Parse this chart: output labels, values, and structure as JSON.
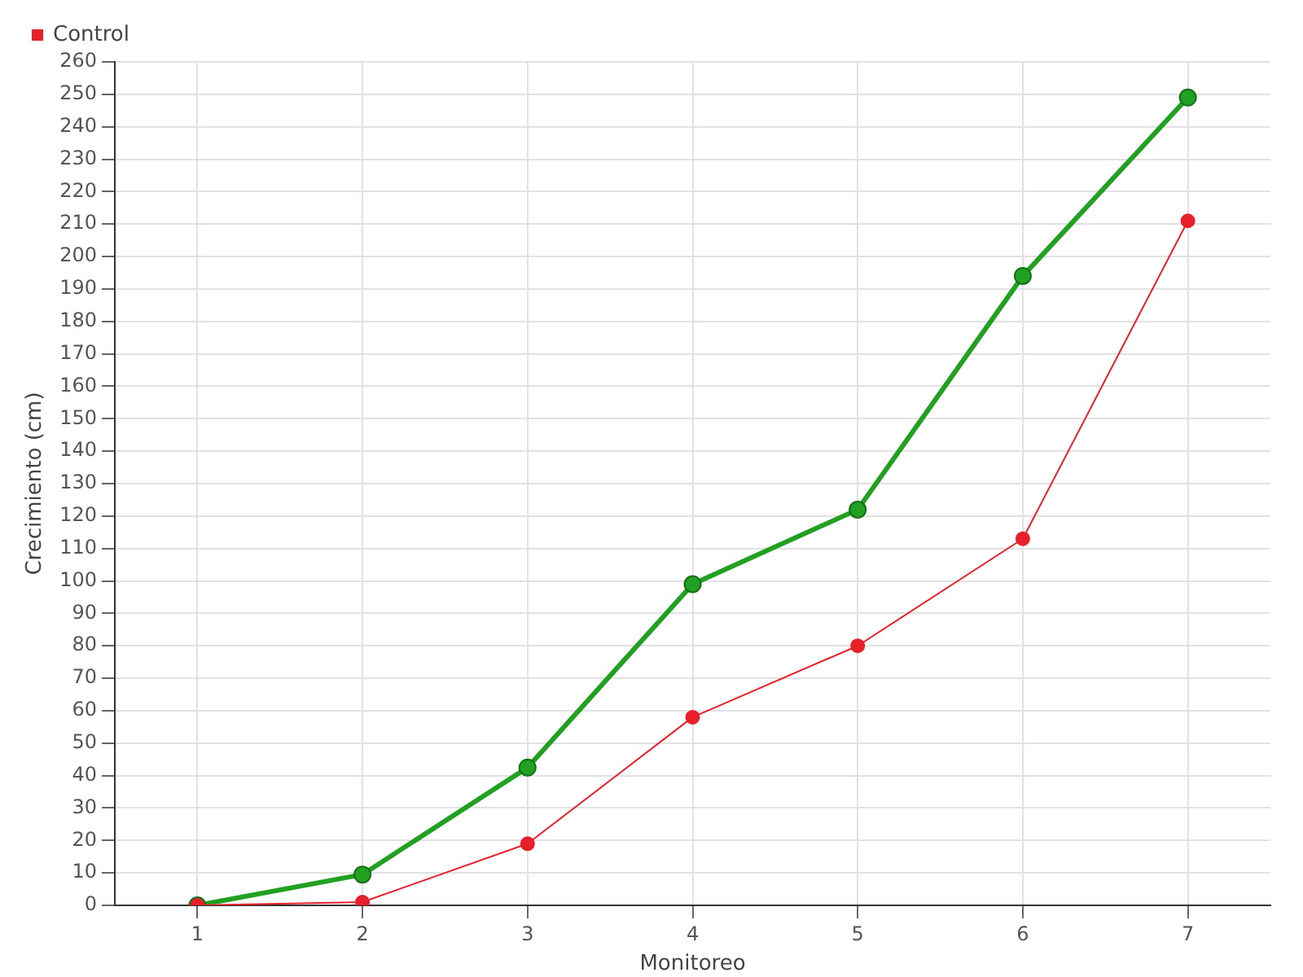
{
  "chart_data": {
    "type": "line",
    "xlabel": "Monitoreo",
    "ylabel": "Crecimiento (cm)",
    "categories": [
      "1",
      "2",
      "3",
      "4",
      "5",
      "6",
      "7"
    ],
    "series": [
      {
        "color": "#22a022",
        "values": [
          0,
          9.5,
          42.5,
          99,
          122,
          194,
          249
        ]
      },
      {
        "name": "Control",
        "color": "#e8202a",
        "values": [
          0,
          1,
          19,
          58,
          80,
          113,
          211
        ]
      }
    ],
    "ylim": [
      0,
      260
    ],
    "yticks": [
      0,
      10,
      20,
      30,
      40,
      50,
      60,
      70,
      80,
      90,
      100,
      110,
      120,
      130,
      140,
      150,
      160,
      170,
      180,
      190,
      200,
      210,
      220,
      230,
      240,
      250,
      260
    ],
    "grid": true,
    "legend": "top left",
    "marker": "circle",
    "line_style": "solid"
  }
}
